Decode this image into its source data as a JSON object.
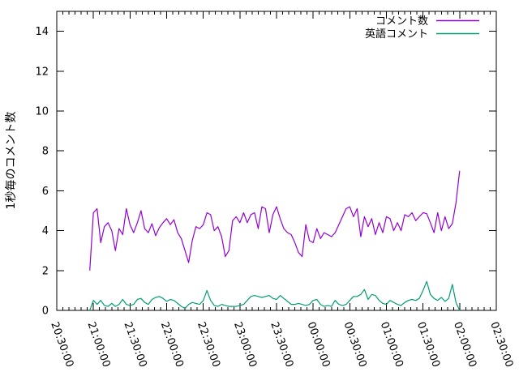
{
  "page": {
    "background": "#ffffff",
    "axis_color": "#000000",
    "text_color": "#000000"
  },
  "chart_data": {
    "type": "line",
    "title": "",
    "xlabel": "",
    "ylabel": "1秒毎のコメント数",
    "ylim": [
      0,
      15
    ],
    "yticks": [
      0,
      2,
      4,
      6,
      8,
      10,
      12,
      14
    ],
    "grid": false,
    "legend": {
      "position": "top-right-inside"
    },
    "x_axis": {
      "start": "20:30:00",
      "end": "02:30:00",
      "range_minutes": 360,
      "major_tick_minutes": 30,
      "minor_tick_minutes": 5,
      "tick_labels": [
        "20:30:00",
        "21:00:00",
        "21:30:00",
        "22:00:00",
        "22:30:00",
        "23:00:00",
        "23:30:00",
        "00:00:00",
        "00:30:00",
        "01:00:00",
        "01:30:00",
        "02:00:00",
        "02:30:00"
      ]
    },
    "series": [
      {
        "name": "コメント数",
        "color": "#9400d3",
        "start_offset_minutes": 27,
        "step_minutes": 3,
        "values": [
          2.0,
          4.9,
          5.1,
          3.4,
          4.2,
          4.4,
          4.0,
          3.0,
          4.1,
          3.8,
          5.1,
          4.3,
          3.9,
          4.4,
          5.0,
          4.1,
          3.9,
          4.35,
          3.75,
          4.15,
          4.4,
          4.6,
          4.3,
          4.55,
          3.9,
          3.6,
          3.0,
          2.4,
          3.5,
          4.2,
          4.1,
          4.3,
          4.9,
          4.8,
          4.0,
          4.2,
          3.7,
          2.7,
          3.0,
          4.5,
          4.7,
          4.4,
          4.9,
          4.4,
          4.8,
          4.9,
          4.1,
          5.2,
          5.1,
          3.9,
          4.8,
          5.2,
          4.6,
          4.1,
          3.9,
          3.8,
          3.4,
          2.9,
          2.7,
          4.3,
          3.5,
          3.4,
          4.1,
          3.6,
          3.9,
          3.8,
          3.7,
          3.9,
          4.3,
          4.7,
          5.1,
          5.2,
          4.7,
          5.1,
          3.7,
          4.7,
          4.2,
          4.6,
          3.8,
          4.4,
          3.9,
          4.7,
          4.6,
          4.0,
          4.4,
          4.0,
          4.8,
          4.7,
          4.9,
          4.5,
          4.7,
          4.9,
          4.85,
          4.4,
          3.9,
          4.9,
          4.0,
          4.7,
          4.1,
          4.35,
          5.4,
          7.0
        ]
      },
      {
        "name": "英語コメント",
        "color": "#009e73",
        "start_offset_minutes": 27,
        "step_minutes": 3,
        "values": [
          0.0,
          0.5,
          0.3,
          0.5,
          0.25,
          0.2,
          0.35,
          0.2,
          0.3,
          0.55,
          0.3,
          0.25,
          0.3,
          0.55,
          0.6,
          0.4,
          0.3,
          0.55,
          0.65,
          0.7,
          0.6,
          0.45,
          0.55,
          0.5,
          0.35,
          0.2,
          0.1,
          0.3,
          0.4,
          0.35,
          0.3,
          0.5,
          1.0,
          0.5,
          0.25,
          0.2,
          0.3,
          0.25,
          0.2,
          0.2,
          0.2,
          0.25,
          0.3,
          0.5,
          0.7,
          0.75,
          0.7,
          0.65,
          0.7,
          0.75,
          0.6,
          0.55,
          0.75,
          0.6,
          0.45,
          0.3,
          0.3,
          0.35,
          0.3,
          0.25,
          0.3,
          0.5,
          0.55,
          0.3,
          0.2,
          0.25,
          0.2,
          0.5,
          0.3,
          0.25,
          0.3,
          0.5,
          0.7,
          0.7,
          0.8,
          1.05,
          0.55,
          0.8,
          0.75,
          0.5,
          0.35,
          0.3,
          0.5,
          0.4,
          0.3,
          0.25,
          0.4,
          0.5,
          0.55,
          0.5,
          0.6,
          1.0,
          1.45,
          0.8,
          0.6,
          0.5,
          0.65,
          0.45,
          0.6,
          1.3,
          0.4,
          0.0
        ]
      }
    ]
  }
}
